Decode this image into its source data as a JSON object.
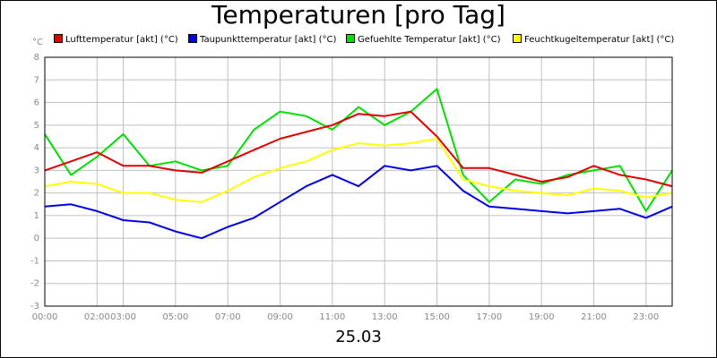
{
  "chart_data": {
    "type": "line",
    "title": "Temperaturen [pro Tag]",
    "subtitle": "25.03",
    "y_unit": "°C",
    "ylim": [
      -3,
      8
    ],
    "y_ticks": [
      8,
      7,
      6,
      5,
      4,
      3,
      2,
      1,
      0,
      -1,
      -2,
      -3
    ],
    "xlim": [
      0,
      24
    ],
    "x_ticks": [
      {
        "x": 0,
        "label": "00:00"
      },
      {
        "x": 2,
        "label": "02:00"
      },
      {
        "x": 3,
        "label": "03:00"
      },
      {
        "x": 5,
        "label": "05:00"
      },
      {
        "x": 7,
        "label": "07:00"
      },
      {
        "x": 9,
        "label": "09:00"
      },
      {
        "x": 11,
        "label": "11:00"
      },
      {
        "x": 13,
        "label": "13:00"
      },
      {
        "x": 15,
        "label": "15:00"
      },
      {
        "x": 17,
        "label": "17:00"
      },
      {
        "x": 19,
        "label": "19:00"
      },
      {
        "x": 21,
        "label": "21:00"
      },
      {
        "x": 23,
        "label": "23:00"
      }
    ],
    "grid": true,
    "legend_position": "top",
    "x": [
      0,
      1,
      2,
      3,
      4,
      5,
      6,
      7,
      8,
      9,
      10,
      11,
      12,
      13,
      14,
      15,
      16,
      17,
      18,
      19,
      20,
      21,
      22,
      23,
      24
    ],
    "series": [
      {
        "name": "Lufttemperatur [akt] (°C)",
        "color": "#e00000",
        "values": [
          3.0,
          3.4,
          3.8,
          3.2,
          3.2,
          3.0,
          2.9,
          3.4,
          3.9,
          4.4,
          4.7,
          5.0,
          5.5,
          5.4,
          5.6,
          4.5,
          3.1,
          3.1,
          2.8,
          2.5,
          2.7,
          3.2,
          2.8,
          2.6,
          2.3
        ]
      },
      {
        "name": "Taupunkttemperatur [akt] (°C)",
        "color": "#0000e0",
        "values": [
          1.4,
          1.5,
          1.2,
          0.8,
          0.7,
          0.3,
          0.0,
          0.5,
          0.9,
          1.6,
          2.3,
          2.8,
          2.3,
          3.2,
          3.0,
          3.2,
          2.1,
          1.4,
          1.3,
          1.2,
          1.1,
          1.2,
          1.3,
          0.9,
          1.4
        ]
      },
      {
        "name": "Gefuehlte Temperatur [akt] (°C)",
        "color": "#00e000",
        "values": [
          4.6,
          2.8,
          3.6,
          4.6,
          3.2,
          3.4,
          3.0,
          3.2,
          4.8,
          5.6,
          5.4,
          4.8,
          5.8,
          5.0,
          5.6,
          6.6,
          2.8,
          1.6,
          2.6,
          2.4,
          2.8,
          3.0,
          3.2,
          1.2,
          3.0
        ]
      },
      {
        "name": "Feuchtkugeltemperatur [akt] (°C)",
        "color": "#ffff00",
        "values": [
          2.3,
          2.5,
          2.4,
          2.0,
          2.0,
          1.7,
          1.6,
          2.1,
          2.7,
          3.1,
          3.4,
          3.9,
          4.2,
          4.1,
          4.2,
          4.4,
          2.6,
          2.3,
          2.1,
          2.0,
          1.9,
          2.2,
          2.1,
          1.8,
          2.0
        ]
      }
    ]
  }
}
